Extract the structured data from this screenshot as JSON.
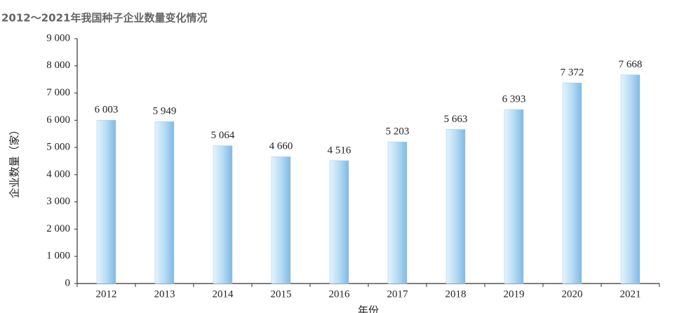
{
  "chart_data": {
    "type": "bar",
    "title": "2012～2021年我国种子企业数量变化情况",
    "y_label": "企业数量（家）",
    "x_label": "年份",
    "categories": [
      "2012",
      "2013",
      "2014",
      "2015",
      "2016",
      "2017",
      "2018",
      "2019",
      "2020",
      "2021"
    ],
    "values": [
      6003,
      5949,
      5064,
      4660,
      4516,
      5203,
      5663,
      6393,
      7372,
      7668
    ],
    "value_labels": [
      "6 003",
      "5 949",
      "5 064",
      "4 660",
      "4 516",
      "5 203",
      "5 663",
      "6 393",
      "7 372",
      "7 668"
    ],
    "color": "#9ccbec",
    "ylim": [
      0,
      9000
    ],
    "yticks": [
      0,
      {
        "value": 1000,
        "label": "1 000"
      },
      {
        "value": 2000,
        "label": "2 000"
      },
      {
        "value": 3000,
        "label": "3 000"
      },
      {
        "value": 4000,
        "label": "4 000"
      },
      {
        "value": 5000,
        "label": "5 000"
      },
      {
        "value": 6000,
        "label": "6 000"
      },
      {
        "value": 7000,
        "label": "7 000"
      },
      {
        "value": 8000,
        "label": "8 000"
      },
      {
        "value": 9000,
        "label": "9 000"
      }
    ],
    "grid": false
  }
}
